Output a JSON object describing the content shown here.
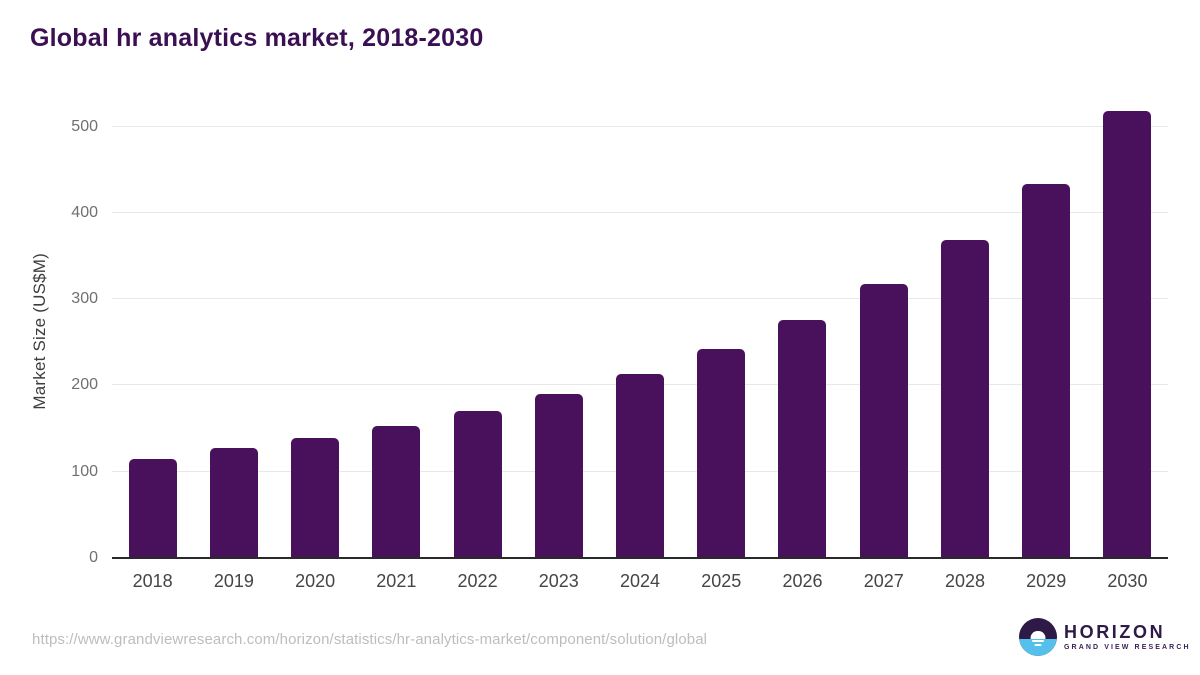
{
  "title": "Global hr analytics market, 2018-2030",
  "chart_data": {
    "type": "bar",
    "categories": [
      "2018",
      "2019",
      "2020",
      "2021",
      "2022",
      "2023",
      "2024",
      "2025",
      "2026",
      "2027",
      "2028",
      "2029",
      "2030"
    ],
    "values": [
      115,
      127,
      139,
      153,
      170,
      190,
      213,
      242,
      276,
      317,
      369,
      434,
      518
    ],
    "title": "Global hr analytics market, 2018-2030",
    "xlabel": "",
    "ylabel": "Market Size (US$M)",
    "ylim": [
      0,
      525
    ],
    "yticks": [
      0,
      100,
      200,
      300,
      400,
      500
    ],
    "grid": "horizontal",
    "legend": "none",
    "bar_color": "#49115c"
  },
  "colors": {
    "title": "#3b1053",
    "bar": "#49115c",
    "gridline": "#e8e8e8",
    "axis_line": "#2a2a2a",
    "y_tick_label": "#707070",
    "x_tick_label": "#454545",
    "footer_url": "#bdbdbd",
    "logo_purple": "#2e1a47",
    "logo_blue": "#55c0eb"
  },
  "footer": {
    "url": "https://www.grandviewresearch.com/horizon/statistics/hr-analytics-market/component/solution/global",
    "logo": {
      "name": "HORIZON",
      "tagline": "GRAND VIEW RESEARCH"
    }
  }
}
